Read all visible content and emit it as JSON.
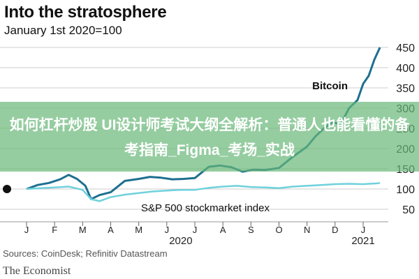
{
  "title": "Into the stratosphere",
  "subtitle": "January 1st 2020=100",
  "source": "Sources: CoinDesk; Refinitiv Datastream",
  "brand": "The Economist",
  "overlay_text": "如何杠杆炒股 UI设计师考试大纲全解析：普通人也能看懂的备考指南_Figma_考场_实战",
  "colors": {
    "bitcoin": "#1d6f8f",
    "sp500": "#6fd1dc",
    "grid": "#cccccc",
    "overlay": "#68b878"
  },
  "chart_data": {
    "type": "line",
    "title": "Into the stratosphere",
    "subtitle": "January 1st 2020=100",
    "x_tick_labels": [
      "J",
      "F",
      "M",
      "A",
      "M",
      "J",
      "J",
      "A",
      "S",
      "O",
      "N",
      "D",
      "J"
    ],
    "year_labels": [
      "2020",
      "2021"
    ],
    "y_tick_labels": [
      "450",
      "400",
      "350",
      "300",
      "250",
      "200",
      "150",
      "100",
      "50"
    ],
    "ylim": [
      50,
      470
    ],
    "grid": true,
    "series": [
      {
        "name": "Bitcoin",
        "x": [
          0,
          0.4,
          0.8,
          1.2,
          1.5,
          1.8,
          2.1,
          2.3,
          2.6,
          3.0,
          3.5,
          4.0,
          4.4,
          4.8,
          5.2,
          5.6,
          6.0,
          6.5,
          6.9,
          7.3,
          7.7,
          8.1,
          8.5,
          9.0,
          9.5,
          10.0,
          10.3,
          10.6,
          10.9,
          11.2,
          11.5,
          11.8,
          12.0,
          12.2,
          12.4,
          12.6
        ],
        "values": [
          100,
          110,
          115,
          124,
          135,
          125,
          108,
          75,
          85,
          92,
          120,
          125,
          130,
          128,
          124,
          125,
          127,
          155,
          158,
          154,
          143,
          148,
          147,
          152,
          180,
          205,
          230,
          250,
          265,
          260,
          300,
          320,
          360,
          380,
          420,
          450
        ]
      },
      {
        "name": "S&P 500 stockmarket index",
        "x": [
          0,
          0.5,
          1.0,
          1.5,
          2.0,
          2.3,
          2.6,
          3.0,
          3.5,
          4.0,
          4.5,
          5.0,
          5.5,
          6.0,
          6.5,
          7.0,
          7.5,
          8.0,
          8.5,
          9.0,
          9.5,
          10.0,
          10.5,
          11.0,
          11.5,
          12.0,
          12.5,
          12.6
        ],
        "values": [
          100,
          102,
          104,
          106,
          98,
          75,
          70,
          80,
          86,
          90,
          94,
          96,
          98,
          98,
          103,
          106,
          108,
          105,
          104,
          102,
          106,
          108,
          110,
          112,
          113,
          112,
          114,
          115
        ]
      }
    ]
  }
}
